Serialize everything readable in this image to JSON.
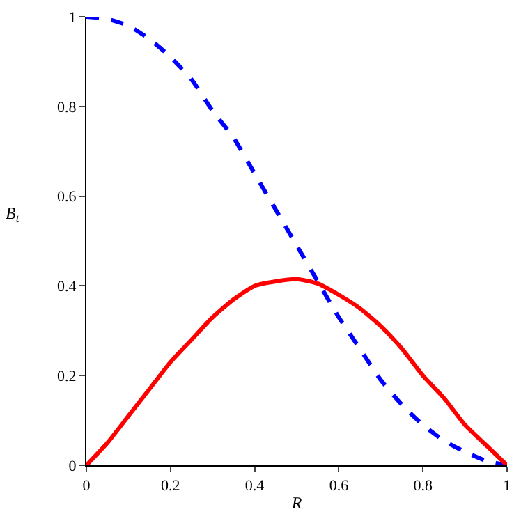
{
  "chart_data": {
    "type": "line",
    "xlabel": "R",
    "ylabel": "B$_{t}$",
    "x": [
      0,
      0.05,
      0.1,
      0.15,
      0.2,
      0.25,
      0.3,
      0.35,
      0.4,
      0.45,
      0.5,
      0.55,
      0.6,
      0.65,
      0.7,
      0.75,
      0.8,
      0.85,
      0.9,
      0.95,
      1
    ],
    "series": [
      {
        "color": "#0000ff",
        "line_style": "dashed",
        "values": [
          1,
          0.995,
          0.98,
          0.95,
          0.91,
          0.86,
          0.79,
          0.73,
          0.65,
          0.57,
          0.49,
          0.41,
          0.33,
          0.26,
          0.19,
          0.135,
          0.09,
          0.055,
          0.03,
          0.01,
          0
        ]
      },
      {
        "color": "#ff0000",
        "line_style": "solid",
        "values": [
          0,
          0.05,
          0.11,
          0.17,
          0.23,
          0.28,
          0.33,
          0.37,
          0.4,
          0.41,
          0.415,
          0.405,
          0.38,
          0.35,
          0.31,
          0.26,
          0.2,
          0.15,
          0.09,
          0.045,
          0
        ]
      }
    ],
    "xlim": [
      0,
      1
    ],
    "ylim": [
      0,
      1
    ],
    "xticks": [
      0,
      0.2,
      0.4,
      0.6,
      0.8,
      1
    ],
    "yticks": [
      0,
      0.2,
      0.4,
      0.6,
      0.8,
      1
    ],
    "grid": false,
    "legend": false,
    "marker": "none"
  }
}
